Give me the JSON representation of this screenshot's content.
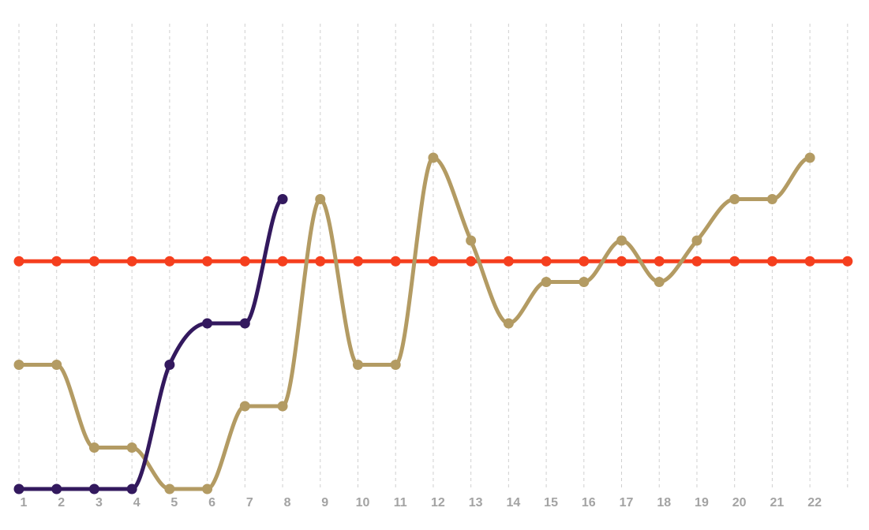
{
  "chart_data": {
    "type": "line",
    "x": [
      1,
      2,
      3,
      4,
      5,
      6,
      7,
      8,
      9,
      10,
      11,
      12,
      13,
      14,
      15,
      16,
      17,
      18,
      19,
      20,
      21,
      22,
      23
    ],
    "x_tick_labels": [
      "1",
      "2",
      "3",
      "4",
      "5",
      "6",
      "7",
      "8",
      "9",
      "10",
      "11",
      "12",
      "13",
      "14",
      "15",
      "16",
      "17",
      "18",
      "19",
      "20",
      "21",
      "22",
      ""
    ],
    "ylim": [
      0,
      11
    ],
    "grid": "vertical dotted",
    "legend": "none",
    "curve": "smooth",
    "series": [
      {
        "color": "#f53f1e",
        "x": [
          1,
          2,
          3,
          4,
          5,
          6,
          7,
          8,
          9,
          10,
          11,
          12,
          13,
          14,
          15,
          16,
          17,
          18,
          19,
          20,
          21,
          22,
          23
        ],
        "values": [
          5.5,
          5.5,
          5.5,
          5.5,
          5.5,
          5.5,
          5.5,
          5.5,
          5.5,
          5.5,
          5.5,
          5.5,
          5.5,
          5.5,
          5.5,
          5.5,
          5.5,
          5.5,
          5.5,
          5.5,
          5.5,
          5.5,
          5.5
        ]
      },
      {
        "color": "#b39b63",
        "x": [
          1,
          2,
          3,
          4,
          5,
          6,
          7,
          8,
          9,
          10,
          11,
          12,
          13,
          14,
          15,
          16,
          17,
          18,
          19,
          20,
          21,
          22
        ],
        "values": [
          3,
          3,
          1,
          1,
          0,
          0,
          2,
          2,
          7,
          3,
          3,
          8,
          6,
          4,
          5,
          5,
          6,
          5,
          6,
          7,
          7,
          8
        ]
      },
      {
        "color": "#33195e",
        "x": [
          1,
          2,
          3,
          4,
          5,
          6,
          7,
          8
        ],
        "values": [
          0,
          0,
          0,
          0,
          3,
          4,
          4,
          7
        ]
      }
    ]
  }
}
